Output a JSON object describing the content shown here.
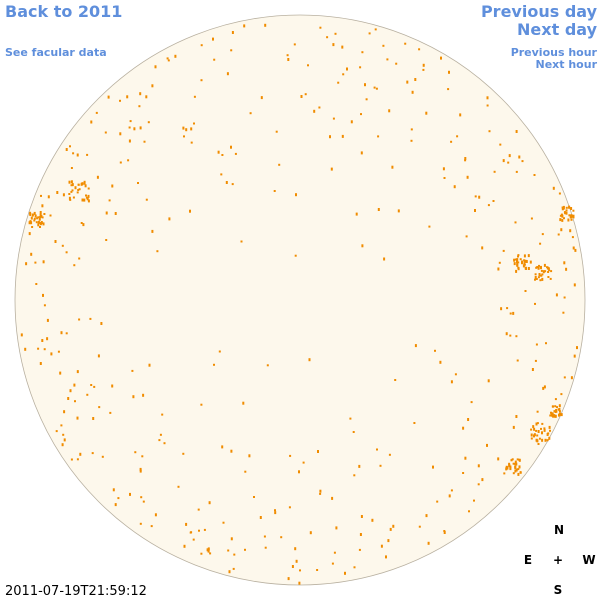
{
  "header": {
    "back_link": "Back to 2011",
    "facular_link": "See facular data",
    "previous_day": "Previous day",
    "next_day": "Next day",
    "previous_hour": "Previous hour",
    "next_hour": "Next hour"
  },
  "timestamp": "2011-07-19T21:59:12",
  "compass": {
    "north": "N",
    "east": "E",
    "center": "+",
    "west": "W",
    "south": "S"
  }
}
